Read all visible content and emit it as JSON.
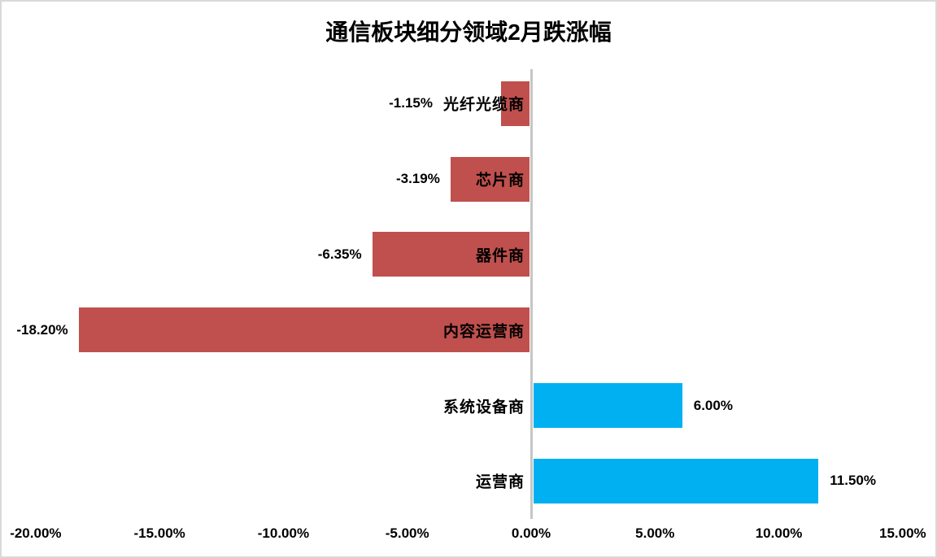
{
  "chart_data": {
    "type": "bar",
    "orientation": "horizontal",
    "title": "通信板块细分领域2月跌涨幅",
    "categories": [
      "光纤光缆商",
      "芯片商",
      "器件商",
      "内容运营商",
      "系统设备商",
      "运营商"
    ],
    "values": [
      -1.15,
      -3.19,
      -6.35,
      -18.2,
      6.0,
      11.5
    ],
    "labels": [
      "-1.15%",
      "-3.19%",
      "-6.35%",
      "-18.20%",
      "6.00%",
      "11.50%"
    ],
    "x_ticks": [
      "-20.00%",
      "-15.00%",
      "-10.00%",
      "-5.00%",
      "0.00%",
      "5.00%",
      "10.00%",
      "15.00%"
    ],
    "x_tick_values": [
      -20,
      -15,
      -10,
      -5,
      0,
      5,
      10,
      15
    ],
    "xlim": [
      -20,
      15
    ],
    "grid": false,
    "legend": "none",
    "colors": {
      "negative_bar": "#C0504D",
      "positive_bar": "#00B0F0",
      "axis_line": "#C6C6C6",
      "chart_border": "#D9D9D9",
      "text": "#000000",
      "background": "#FFFFFF"
    }
  }
}
